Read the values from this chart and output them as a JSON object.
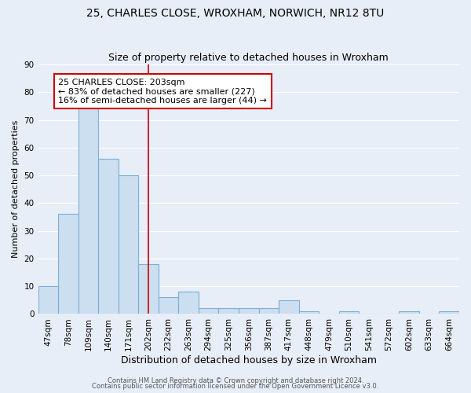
{
  "title1": "25, CHARLES CLOSE, WROXHAM, NORWICH, NR12 8TU",
  "title2": "Size of property relative to detached houses in Wroxham",
  "xlabel": "Distribution of detached houses by size in Wroxham",
  "ylabel": "Number of detached properties",
  "categories": [
    "47sqm",
    "78sqm",
    "109sqm",
    "140sqm",
    "171sqm",
    "202sqm",
    "232sqm",
    "263sqm",
    "294sqm",
    "325sqm",
    "356sqm",
    "387sqm",
    "417sqm",
    "448sqm",
    "479sqm",
    "510sqm",
    "541sqm",
    "572sqm",
    "602sqm",
    "633sqm",
    "664sqm"
  ],
  "values": [
    10,
    36,
    75,
    56,
    50,
    18,
    6,
    8,
    2,
    2,
    2,
    2,
    5,
    1,
    0,
    1,
    0,
    0,
    1,
    0,
    1
  ],
  "bar_color": "#ccdff0",
  "bar_edge_color": "#7bafd4",
  "background_color": "#e8eef8",
  "grid_color": "#ffffff",
  "vline_x_index": 5,
  "vline_color": "#cc0000",
  "annotation_line1": "25 CHARLES CLOSE: 203sqm",
  "annotation_line2": "← 83% of detached houses are smaller (227)",
  "annotation_line3": "16% of semi-detached houses are larger (44) →",
  "annotation_box_color": "#ffffff",
  "annotation_box_edge_color": "#cc0000",
  "ylim": [
    0,
    90
  ],
  "yticks": [
    0,
    10,
    20,
    30,
    40,
    50,
    60,
    70,
    80,
    90
  ],
  "footer1": "Contains HM Land Registry data © Crown copyright and database right 2024.",
  "footer2": "Contains public sector information licensed under the Open Government Licence v3.0.",
  "title1_fontsize": 10,
  "title2_fontsize": 9,
  "ylabel_fontsize": 8,
  "xlabel_fontsize": 9,
  "tick_fontsize": 7.5,
  "annotation_fontsize": 8,
  "footer_fontsize": 6
}
